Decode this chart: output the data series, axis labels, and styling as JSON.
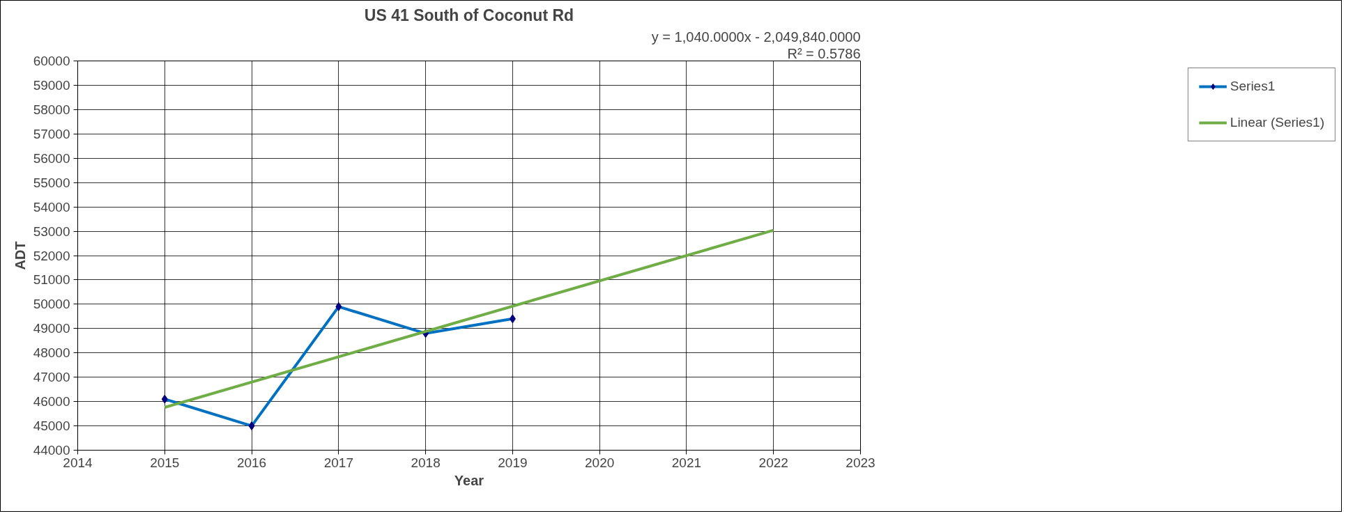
{
  "chart_data": {
    "type": "line",
    "title": "US 41 South of Coconut Rd",
    "xlabel": "Year",
    "ylabel": "ADT",
    "x": [
      2015,
      2016,
      2017,
      2018,
      2019
    ],
    "series": [
      {
        "name": "Series1",
        "color": "#0070c0",
        "values": [
          46100,
          45000,
          49900,
          48800,
          49400
        ],
        "marker": "diamond"
      },
      {
        "name": "Linear (Series1)",
        "color": "#70ad47",
        "type": "line",
        "x": [
          2015,
          2022
        ],
        "values": [
          45760,
          53040
        ],
        "marker": "none"
      }
    ],
    "xlim": [
      2014,
      2023
    ],
    "xticks": [
      2014,
      2015,
      2016,
      2017,
      2018,
      2019,
      2020,
      2021,
      2022,
      2023
    ],
    "ylim": [
      44000,
      60000
    ],
    "yticks": [
      44000,
      45000,
      46000,
      47000,
      48000,
      49000,
      50000,
      51000,
      52000,
      53000,
      54000,
      55000,
      56000,
      57000,
      58000,
      59000,
      60000
    ],
    "grid": true,
    "legend": "right",
    "line_style": "solid",
    "annotations": [
      "y = 1,040.0000x - 2,049,840.0000",
      "R² = 0.5786"
    ]
  }
}
